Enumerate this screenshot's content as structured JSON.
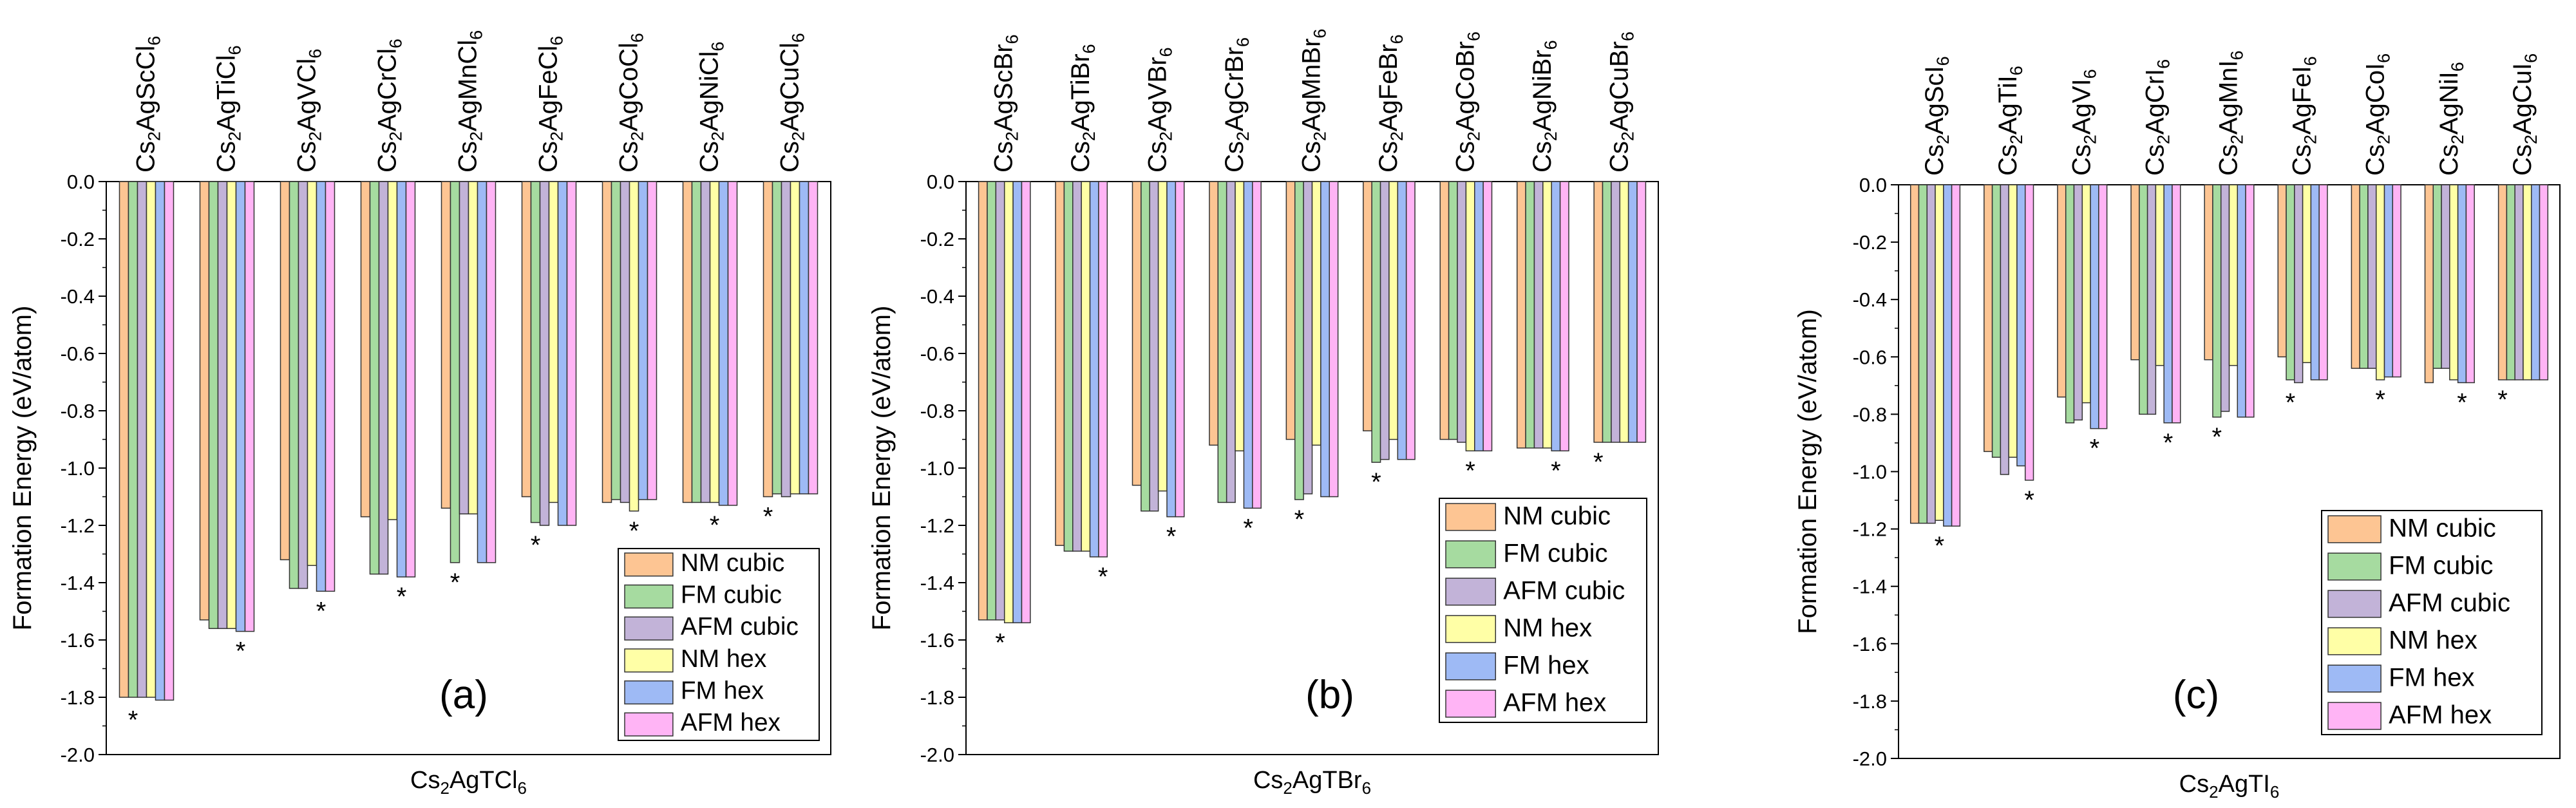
{
  "legend_entries": [
    "NM cubic",
    "FM cubic",
    "AFM cubic",
    "NM hex",
    "FM hex",
    "AFM hex"
  ],
  "series_colors": [
    "#FDC593",
    "#A6DBA0",
    "#C2B3D8",
    "#FFFFA6",
    "#9EBAF5",
    "#FFB4F5"
  ],
  "chart_data": [
    {
      "type": "bar",
      "panel_label": "(a)",
      "xlabel_prefix": "Cs",
      "xlabel_sub": "2",
      "xlabel_mid": "AgTCl",
      "xlabel_sub2": "6",
      "ylabel": "Formation Energy (eV/atom)",
      "ylim": [
        -2.0,
        0.0
      ],
      "yticks": [
        "0.0",
        "-0.2",
        "-0.4",
        "-0.6",
        "-0.8",
        "-1.0",
        "-1.2",
        "-1.4",
        "-1.6",
        "-1.8",
        "-2.0"
      ],
      "categories": [
        {
          "a": "Cs",
          "s1": "2",
          "b": "AgScCl",
          "s2": "6"
        },
        {
          "a": "Cs",
          "s1": "2",
          "b": "AgTiCl",
          "s2": "6"
        },
        {
          "a": "Cs",
          "s1": "2",
          "b": "AgVCl",
          "s2": "6"
        },
        {
          "a": "Cs",
          "s1": "2",
          "b": "AgCrCl",
          "s2": "6"
        },
        {
          "a": "Cs",
          "s1": "2",
          "b": "AgMnCl",
          "s2": "6"
        },
        {
          "a": "Cs",
          "s1": "2",
          "b": "AgFeCl",
          "s2": "6"
        },
        {
          "a": "Cs",
          "s1": "2",
          "b": "AgCoCl",
          "s2": "6"
        },
        {
          "a": "Cs",
          "s1": "2",
          "b": "AgNiCl",
          "s2": "6"
        },
        {
          "a": "Cs",
          "s1": "2",
          "b": "AgCuCl",
          "s2": "6"
        }
      ],
      "series": [
        {
          "name": "NM cubic",
          "values": [
            -1.8,
            -1.53,
            -1.32,
            -1.17,
            -1.14,
            -1.1,
            -1.12,
            -1.12,
            -1.1
          ]
        },
        {
          "name": "FM cubic",
          "values": [
            -1.8,
            -1.56,
            -1.42,
            -1.37,
            -1.33,
            -1.19,
            -1.11,
            -1.12,
            -1.09
          ]
        },
        {
          "name": "AFM cubic",
          "values": [
            -1.8,
            -1.56,
            -1.42,
            -1.37,
            -1.16,
            -1.2,
            -1.12,
            -1.12,
            -1.1
          ]
        },
        {
          "name": "NM hex",
          "values": [
            -1.8,
            -1.56,
            -1.34,
            -1.18,
            -1.16,
            -1.12,
            -1.15,
            -1.12,
            -1.09
          ]
        },
        {
          "name": "FM hex",
          "values": [
            -1.81,
            -1.57,
            -1.43,
            -1.38,
            -1.33,
            -1.2,
            -1.11,
            -1.13,
            -1.09
          ]
        },
        {
          "name": "AFM hex",
          "values": [
            -1.81,
            -1.57,
            -1.43,
            -1.38,
            -1.33,
            -1.2,
            -1.11,
            -1.13,
            -1.09
          ]
        }
      ],
      "star_marks": [
        {
          "category": 0,
          "series": 1,
          "text": "*"
        },
        {
          "category": 1,
          "series": 4,
          "text": "*"
        },
        {
          "category": 2,
          "series": 4,
          "text": "*"
        },
        {
          "category": 3,
          "series": 4,
          "text": "*"
        },
        {
          "category": 4,
          "series": 1,
          "text": "*"
        },
        {
          "category": 5,
          "series": 1,
          "text": "*"
        },
        {
          "category": 6,
          "series": 3,
          "text": "*"
        },
        {
          "category": 7,
          "series": 3,
          "text": "*"
        },
        {
          "category": 8,
          "series": 0,
          "text": "*"
        }
      ],
      "legend_position": "bottom-right"
    },
    {
      "type": "bar",
      "panel_label": "(b)",
      "xlabel_prefix": "Cs",
      "xlabel_sub": "2",
      "xlabel_mid": "AgTBr",
      "xlabel_sub2": "6",
      "ylabel": "Formation Energy (eV/atom)",
      "ylim": [
        -2.0,
        0.0
      ],
      "yticks": [
        "0.0",
        "-0.2",
        "-0.4",
        "-0.6",
        "-0.8",
        "-1.0",
        "-1.2",
        "-1.4",
        "-1.6",
        "-1.8",
        "-2.0"
      ],
      "categories": [
        {
          "a": "Cs",
          "s1": "2",
          "b": "AgScBr",
          "s2": "6"
        },
        {
          "a": "Cs",
          "s1": "2",
          "b": "AgTiBr",
          "s2": "6"
        },
        {
          "a": "Cs",
          "s1": "2",
          "b": "AgVBr",
          "s2": "6"
        },
        {
          "a": "Cs",
          "s1": "2",
          "b": "AgCrBr",
          "s2": "6"
        },
        {
          "a": "Cs",
          "s1": "2",
          "b": "AgMnBr",
          "s2": "6"
        },
        {
          "a": "Cs",
          "s1": "2",
          "b": "AgFeBr",
          "s2": "6"
        },
        {
          "a": "Cs",
          "s1": "2",
          "b": "AgCoBr",
          "s2": "6"
        },
        {
          "a": "Cs",
          "s1": "2",
          "b": "AgNiBr",
          "s2": "6"
        },
        {
          "a": "Cs",
          "s1": "2",
          "b": "AgCuBr",
          "s2": "6"
        }
      ],
      "series": [
        {
          "name": "NM cubic",
          "values": [
            -1.53,
            -1.27,
            -1.06,
            -0.92,
            -0.9,
            -0.87,
            -0.9,
            -0.93,
            -0.91
          ]
        },
        {
          "name": "FM cubic",
          "values": [
            -1.53,
            -1.29,
            -1.15,
            -1.12,
            -1.11,
            -0.98,
            -0.9,
            -0.93,
            -0.91
          ]
        },
        {
          "name": "AFM cubic",
          "values": [
            -1.53,
            -1.29,
            -1.15,
            -1.12,
            -1.09,
            -0.97,
            -0.91,
            -0.93,
            -0.91
          ]
        },
        {
          "name": "NM hex",
          "values": [
            -1.54,
            -1.29,
            -1.08,
            -0.94,
            -0.92,
            -0.9,
            -0.94,
            -0.93,
            -0.91
          ]
        },
        {
          "name": "FM hex",
          "values": [
            -1.54,
            -1.31,
            -1.17,
            -1.14,
            -1.1,
            -0.97,
            -0.94,
            -0.94,
            -0.91
          ]
        },
        {
          "name": "AFM hex",
          "values": [
            -1.54,
            -1.31,
            -1.17,
            -1.14,
            -1.1,
            -0.97,
            -0.94,
            -0.94,
            -0.91
          ]
        }
      ],
      "star_marks": [
        {
          "category": 0,
          "series": 2,
          "text": "*"
        },
        {
          "category": 1,
          "series": 5,
          "text": "*"
        },
        {
          "category": 2,
          "series": 4,
          "text": "*"
        },
        {
          "category": 3,
          "series": 4,
          "text": "*"
        },
        {
          "category": 4,
          "series": 1,
          "text": "*"
        },
        {
          "category": 5,
          "series": 1,
          "text": "*"
        },
        {
          "category": 6,
          "series": 3,
          "text": "*"
        },
        {
          "category": 7,
          "series": 4,
          "text": "*"
        },
        {
          "category": 8,
          "series": 0,
          "text": "*"
        }
      ],
      "legend_position": "bottom-right"
    },
    {
      "type": "bar",
      "panel_label": "(c)",
      "xlabel_prefix": "Cs",
      "xlabel_sub": "2",
      "xlabel_mid": "AgTI",
      "xlabel_sub2": "6",
      "ylabel": "Formation Energy (eV/atom)",
      "ylim": [
        -2.0,
        0.0
      ],
      "yticks": [
        "0.0",
        "-0.2",
        "-0.4",
        "-0.6",
        "-0.8",
        "-1.0",
        "-1.2",
        "-1.4",
        "-1.6",
        "-1.8",
        "-2.0"
      ],
      "categories": [
        {
          "a": "Cs",
          "s1": "2",
          "b": "AgScI",
          "s2": "6"
        },
        {
          "a": "Cs",
          "s1": "2",
          "b": "AgTiI",
          "s2": "6"
        },
        {
          "a": "Cs",
          "s1": "2",
          "b": "AgVI",
          "s2": "6"
        },
        {
          "a": "Cs",
          "s1": "2",
          "b": "AgCrI",
          "s2": "6"
        },
        {
          "a": "Cs",
          "s1": "2",
          "b": "AgMnI",
          "s2": "6"
        },
        {
          "a": "Cs",
          "s1": "2",
          "b": "AgFeI",
          "s2": "6"
        },
        {
          "a": "Cs",
          "s1": "2",
          "b": "AgCoI",
          "s2": "6"
        },
        {
          "a": "Cs",
          "s1": "2",
          "b": "AgNiI",
          "s2": "6"
        },
        {
          "a": "Cs",
          "s1": "2",
          "b": "AgCuI",
          "s2": "6"
        }
      ],
      "series": [
        {
          "name": "NM cubic",
          "values": [
            -1.18,
            -0.93,
            -0.74,
            -0.61,
            -0.61,
            -0.6,
            -0.64,
            -0.69,
            -0.68
          ]
        },
        {
          "name": "FM cubic",
          "values": [
            -1.18,
            -0.95,
            -0.83,
            -0.8,
            -0.81,
            -0.68,
            -0.64,
            -0.64,
            -0.68
          ]
        },
        {
          "name": "AFM cubic",
          "values": [
            -1.18,
            -1.01,
            -0.82,
            -0.8,
            -0.79,
            -0.69,
            -0.64,
            -0.64,
            -0.68
          ]
        },
        {
          "name": "NM hex",
          "values": [
            -1.17,
            -0.95,
            -0.76,
            -0.63,
            -0.63,
            -0.62,
            -0.68,
            -0.68,
            -0.68
          ]
        },
        {
          "name": "FM hex",
          "values": [
            -1.19,
            -0.98,
            -0.85,
            -0.83,
            -0.81,
            -0.68,
            -0.67,
            -0.69,
            -0.68
          ]
        },
        {
          "name": "AFM hex",
          "values": [
            -1.19,
            -1.03,
            -0.85,
            -0.83,
            -0.81,
            -0.68,
            -0.67,
            -0.69,
            -0.68
          ]
        }
      ],
      "star_marks": [
        {
          "category": 0,
          "series": 3,
          "text": "*"
        },
        {
          "category": 1,
          "series": 5,
          "text": "*"
        },
        {
          "category": 2,
          "series": 4,
          "text": "*"
        },
        {
          "category": 3,
          "series": 4,
          "text": "*"
        },
        {
          "category": 4,
          "series": 1,
          "text": "*"
        },
        {
          "category": 5,
          "series": 1,
          "text": "*"
        },
        {
          "category": 6,
          "series": 3,
          "text": "*"
        },
        {
          "category": 7,
          "series": 4,
          "text": "*"
        },
        {
          "category": 8,
          "series": 0,
          "text": "*"
        }
      ],
      "legend_position": "top-right"
    }
  ]
}
